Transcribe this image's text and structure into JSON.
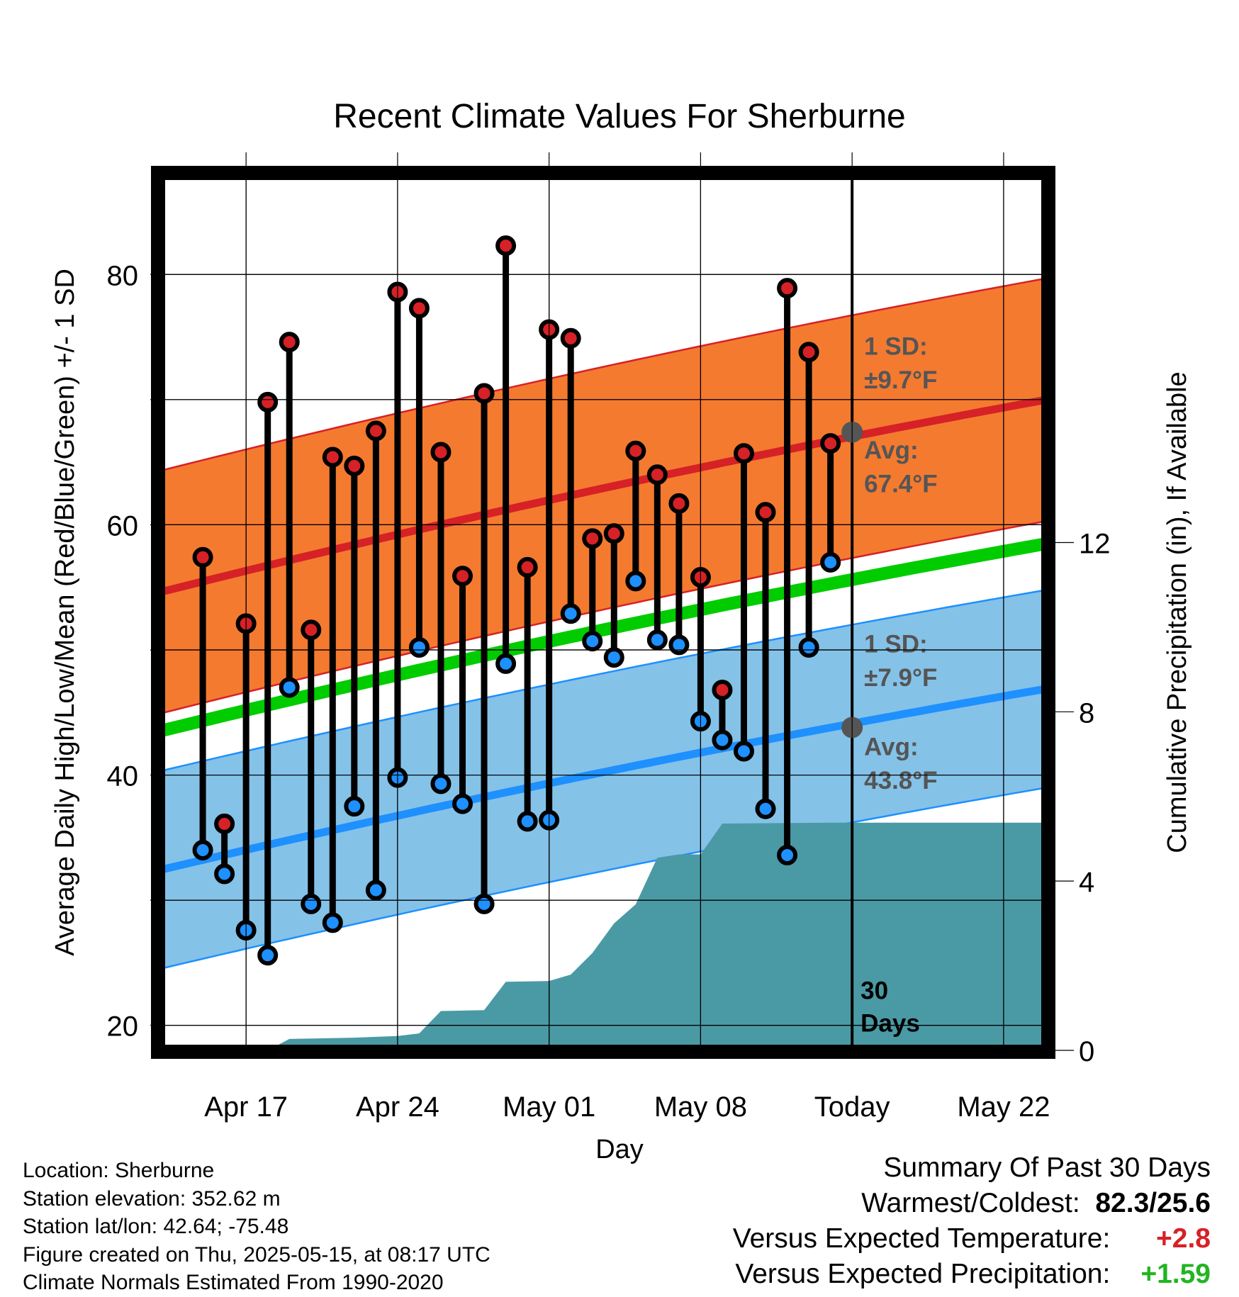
{
  "chart_data": {
    "type": "line",
    "title": "Recent Climate Values For Sherburne",
    "xlabel": "Day",
    "ylabel": "Average Daily High/Low/Mean (Red/Blue/Green) +/- 1 SD",
    "y2label": "Cumulative Precipitation (in), If Available",
    "x_ticks": [
      "Apr 17",
      "Apr 24",
      "May 01",
      "May 08",
      "Today",
      "May 22"
    ],
    "x_tick_dates": [
      "2025-04-17",
      "2025-04-24",
      "2025-05-01",
      "2025-05-08",
      "2025-05-15",
      "2025-05-22"
    ],
    "xlim": [
      "2025-04-13",
      "2025-05-24"
    ],
    "ylim": [
      18,
      88
    ],
    "y_ticks": [
      20,
      40,
      60,
      80
    ],
    "y2lim": [
      0,
      20.7
    ],
    "y2_ticks": [
      0,
      4,
      8,
      12
    ],
    "grid": true,
    "dates": [
      "2025-04-15",
      "2025-04-16",
      "2025-04-17",
      "2025-04-18",
      "2025-04-19",
      "2025-04-20",
      "2025-04-21",
      "2025-04-22",
      "2025-04-23",
      "2025-04-24",
      "2025-04-25",
      "2025-04-26",
      "2025-04-27",
      "2025-04-28",
      "2025-04-29",
      "2025-04-30",
      "2025-05-01",
      "2025-05-02",
      "2025-05-03",
      "2025-05-04",
      "2025-05-05",
      "2025-05-06",
      "2025-05-07",
      "2025-05-08",
      "2025-05-09",
      "2025-05-10",
      "2025-05-11",
      "2025-05-12",
      "2025-05-13",
      "2025-05-14"
    ],
    "daily_high": [
      57.4,
      36.1,
      52.1,
      69.8,
      74.6,
      51.6,
      65.4,
      64.7,
      67.5,
      78.6,
      77.3,
      65.8,
      55.9,
      70.5,
      82.3,
      56.6,
      75.6,
      74.9,
      58.9,
      59.3,
      65.9,
      64.0,
      61.7,
      55.8,
      46.8,
      65.7,
      61.0,
      78.9,
      73.8,
      66.5
    ],
    "daily_low": [
      34.0,
      32.1,
      27.6,
      25.6,
      47.0,
      29.7,
      28.2,
      37.5,
      30.8,
      39.8,
      50.2,
      39.3,
      37.7,
      29.7,
      48.9,
      36.3,
      36.4,
      52.9,
      50.7,
      49.4,
      55.5,
      50.8,
      50.4,
      44.3,
      42.8,
      41.9,
      37.3,
      33.6,
      50.2,
      57.0
    ],
    "normal_high": {
      "dates": [
        "2025-04-13",
        "2025-05-24"
      ],
      "values": [
        54.6,
        70.0
      ],
      "sd": 9.7,
      "label": "Avg:",
      "label_value": "67.4°F",
      "sd_label": "1 SD:",
      "sd_value": "±9.7°F"
    },
    "normal_low": {
      "dates": [
        "2025-04-13",
        "2025-05-24"
      ],
      "values": [
        32.4,
        46.9
      ],
      "sd": 7.9,
      "label": "Avg:",
      "label_value": "43.8°F",
      "sd_label": "1 SD:",
      "sd_value": "±7.9°F"
    },
    "normal_mean": {
      "dates": [
        "2025-04-13",
        "2025-05-24"
      ],
      "values": [
        43.5,
        58.5
      ]
    },
    "today_markers": {
      "high": 67.4,
      "low": 43.8
    },
    "precip_cumulative": [
      {
        "date": "2025-04-17",
        "value": 0.0
      },
      {
        "date": "2025-04-18",
        "value": 0.0
      },
      {
        "date": "2025-04-19",
        "value": 0.27
      },
      {
        "date": "2025-04-22",
        "value": 0.3
      },
      {
        "date": "2025-04-24",
        "value": 0.34
      },
      {
        "date": "2025-04-25",
        "value": 0.4
      },
      {
        "date": "2025-04-26",
        "value": 0.93
      },
      {
        "date": "2025-04-28",
        "value": 0.95
      },
      {
        "date": "2025-04-29",
        "value": 1.62
      },
      {
        "date": "2025-05-01",
        "value": 1.64
      },
      {
        "date": "2025-05-02",
        "value": 1.79
      },
      {
        "date": "2025-05-03",
        "value": 2.3
      },
      {
        "date": "2025-05-04",
        "value": 3.0
      },
      {
        "date": "2025-05-05",
        "value": 3.45
      },
      {
        "date": "2025-05-06",
        "value": 4.55
      },
      {
        "date": "2025-05-07",
        "value": 4.63
      },
      {
        "date": "2025-05-08",
        "value": 4.63
      },
      {
        "date": "2025-05-09",
        "value": 5.36
      },
      {
        "date": "2025-05-14",
        "value": 5.38
      },
      {
        "date": "2025-05-24",
        "value": 5.38
      }
    ],
    "today_label": "30 Days"
  },
  "info": {
    "location": "Location: Sherburne",
    "elevation": "Station elevation: 352.62 m",
    "latlon": "Station lat/lon: 42.64; -75.48",
    "created": "Figure created on Thu, 2025-05-15, at 08:17 UTC",
    "normals": "Climate Normals Estimated From 1990-2020"
  },
  "summary": {
    "heading": "Summary Of Past 30 Days",
    "warm_cold_label": "Warmest/Coldest:",
    "warm_cold_value": "82.3/25.6",
    "temp_label": "Versus Expected Temperature:",
    "temp_value": "+2.8",
    "precip_label": "Versus Expected Precipitation:",
    "precip_value": "+1.59"
  },
  "colors": {
    "high_band": "#f47a30",
    "high_line": "#d62126",
    "low_band": "#85c2e8",
    "low_line": "#1e90ff",
    "mean_line": "#00cc00",
    "precip_fill": "#4a9aa5",
    "annotation_text": "#555555",
    "marker_high": "#d62126",
    "marker_low": "#1e90ff",
    "positive_temp": "#d62126",
    "positive_precip": "#22b522"
  }
}
